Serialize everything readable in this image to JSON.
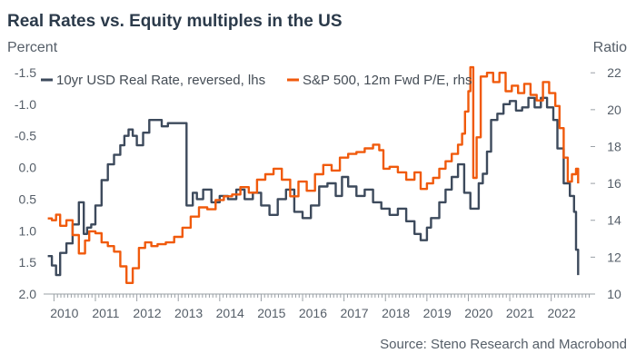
{
  "chart_data": {
    "type": "line",
    "title": "Real Rates vs. Equity multiples in the US",
    "left_axis_unit": "Percent",
    "right_axis_unit": "Ratio",
    "source": "Source: Steno Research and Macrobond",
    "left_axis": {
      "reversed": true,
      "range": [
        -1.7,
        2.0
      ],
      "ticks": [
        "-1.5",
        "-1.0",
        "-0.5",
        "0.0",
        "0.5",
        "1.0",
        "1.5",
        "2.0"
      ],
      "tick_values": [
        -1.5,
        -1.0,
        -0.5,
        0.0,
        0.5,
        1.0,
        1.5,
        2.0
      ]
    },
    "right_axis": {
      "range": [
        10,
        22.7
      ],
      "ticks": [
        "10",
        "12",
        "14",
        "16",
        "18",
        "20",
        "22"
      ],
      "tick_values": [
        10,
        12,
        14,
        16,
        18,
        20,
        22
      ]
    },
    "x_axis": {
      "range": [
        2009.75,
        2022.95
      ],
      "ticks": [
        "2010",
        "2011",
        "2012",
        "2013",
        "2014",
        "2015",
        "2016",
        "2017",
        "2018",
        "2019",
        "2020",
        "2021",
        "2022"
      ],
      "tick_values": [
        2010.25,
        2011.25,
        2012.25,
        2013.25,
        2014.25,
        2015.25,
        2016.25,
        2017.25,
        2018.25,
        2019.25,
        2020.25,
        2021.25,
        2022.25
      ]
    },
    "grid": false,
    "legend_position": "top-left",
    "colors": {
      "real_rate": "#3d4a5c",
      "pe": "#f05a0c"
    },
    "series": [
      {
        "name": "10yr USD Real Rate, reversed, lhs",
        "key": "real_rate",
        "axis": "left",
        "x": [
          2009.85,
          2009.95,
          2010.05,
          2010.15,
          2010.3,
          2010.45,
          2010.6,
          2010.72,
          2010.8,
          2010.9,
          2011.0,
          2011.15,
          2011.3,
          2011.45,
          2011.6,
          2011.7,
          2011.8,
          2011.9,
          2012.0,
          2012.15,
          2012.3,
          2012.45,
          2012.6,
          2012.75,
          2012.9,
          2013.05,
          2013.2,
          2013.35,
          2013.45,
          2013.6,
          2013.8,
          2014.0,
          2014.2,
          2014.4,
          2014.6,
          2014.8,
          2015.0,
          2015.2,
          2015.4,
          2015.6,
          2015.8,
          2016.0,
          2016.2,
          2016.4,
          2016.6,
          2016.8,
          2016.95,
          2017.1,
          2017.3,
          2017.5,
          2017.7,
          2017.9,
          2018.1,
          2018.3,
          2018.5,
          2018.7,
          2018.85,
          2019.0,
          2019.1,
          2019.3,
          2019.45,
          2019.6,
          2019.75,
          2019.9,
          2020.05,
          2020.25,
          2020.35,
          2020.45,
          2020.55,
          2020.7,
          2020.85,
          2021.0,
          2021.15,
          2021.3,
          2021.45,
          2021.6,
          2021.75,
          2021.9,
          2022.05,
          2022.15,
          2022.3,
          2022.45,
          2022.55,
          2022.6,
          2022.65
        ],
        "values": [
          1.4,
          1.55,
          1.7,
          1.35,
          1.2,
          0.9,
          0.55,
          1.05,
          0.95,
          0.9,
          0.6,
          0.2,
          -0.05,
          -0.2,
          -0.35,
          -0.5,
          -0.6,
          -0.5,
          -0.35,
          -0.55,
          -0.75,
          -0.75,
          -0.65,
          -0.7,
          -0.7,
          -0.7,
          0.6,
          0.4,
          0.5,
          0.35,
          0.55,
          0.45,
          0.5,
          0.35,
          0.5,
          0.4,
          0.6,
          0.75,
          0.5,
          0.35,
          0.7,
          0.8,
          0.6,
          0.3,
          0.25,
          0.45,
          0.15,
          0.3,
          0.45,
          0.35,
          0.55,
          0.65,
          0.75,
          0.65,
          0.85,
          1.05,
          1.15,
          0.95,
          0.8,
          0.55,
          0.35,
          0.15,
          -0.05,
          0.4,
          0.65,
          0.25,
          0.1,
          -0.25,
          -0.75,
          -0.85,
          -1.0,
          -1.05,
          -0.9,
          -0.95,
          -1.1,
          -0.95,
          -1.1,
          -0.95,
          -0.75,
          -0.3,
          0.25,
          0.45,
          0.7,
          1.3,
          1.7
        ]
      },
      {
        "name": "S&P 500, 12m Fwd P/E, rhs",
        "key": "pe",
        "axis": "right",
        "x": [
          2009.85,
          2009.95,
          2010.05,
          2010.15,
          2010.3,
          2010.45,
          2010.6,
          2010.75,
          2010.85,
          2011.0,
          2011.15,
          2011.3,
          2011.45,
          2011.6,
          2011.75,
          2011.9,
          2012.05,
          2012.2,
          2012.35,
          2012.5,
          2012.7,
          2012.9,
          2013.1,
          2013.3,
          2013.5,
          2013.7,
          2013.9,
          2014.1,
          2014.3,
          2014.5,
          2014.7,
          2014.9,
          2015.1,
          2015.3,
          2015.5,
          2015.7,
          2015.9,
          2016.1,
          2016.3,
          2016.5,
          2016.7,
          2016.9,
          2017.1,
          2017.3,
          2017.5,
          2017.7,
          2017.85,
          2017.95,
          2018.1,
          2018.3,
          2018.5,
          2018.7,
          2018.85,
          2019.0,
          2019.15,
          2019.3,
          2019.45,
          2019.6,
          2019.75,
          2019.85,
          2019.92,
          2020.0,
          2020.05,
          2020.12,
          2020.2,
          2020.3,
          2020.45,
          2020.6,
          2020.75,
          2020.9,
          2021.05,
          2021.2,
          2021.35,
          2021.5,
          2021.65,
          2021.8,
          2021.95,
          2022.1,
          2022.2,
          2022.3,
          2022.4,
          2022.5,
          2022.6,
          2022.65
        ],
        "values": [
          14.1,
          14.0,
          14.3,
          13.7,
          14.0,
          13.2,
          12.2,
          12.9,
          13.4,
          13.3,
          12.8,
          12.6,
          12.3,
          11.5,
          10.6,
          11.4,
          12.5,
          12.8,
          12.6,
          12.7,
          12.8,
          13.1,
          13.6,
          14.2,
          14.7,
          14.6,
          15.1,
          15.3,
          15.4,
          15.8,
          15.5,
          16.2,
          16.5,
          16.8,
          16.2,
          15.3,
          16.1,
          15.6,
          16.5,
          17.0,
          16.7,
          17.4,
          17.6,
          17.7,
          17.9,
          18.1,
          17.8,
          16.8,
          16.9,
          16.6,
          16.2,
          16.6,
          15.7,
          16.0,
          16.3,
          16.8,
          17.2,
          17.6,
          18.1,
          18.7,
          19.9,
          21.0,
          22.3,
          16.3,
          18.5,
          21.8,
          22.0,
          21.5,
          22.0,
          21.0,
          21.3,
          20.9,
          21.4,
          20.8,
          20.5,
          21.5,
          20.9,
          20.2,
          19.0,
          17.4,
          16.1,
          16.5,
          16.8,
          16.0
        ]
      }
    ]
  }
}
